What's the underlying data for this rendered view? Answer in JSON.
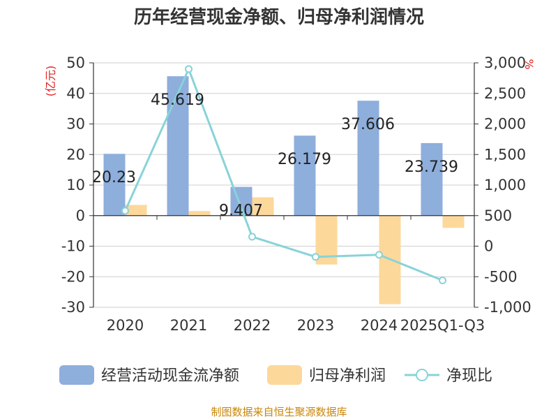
{
  "chart_data": {
    "type": "bar",
    "title": "历年经营现金净额、归母净利润情况",
    "categories": [
      "2020",
      "2021",
      "2022",
      "2023",
      "2024",
      "2025Q1-Q3"
    ],
    "series": [
      {
        "name": "经营活动现金流净额",
        "type": "bar",
        "axis": "left",
        "color": "#8eaedc",
        "values": [
          20.23,
          45.619,
          9.407,
          26.179,
          37.606,
          23.739
        ],
        "labels": [
          "20.23",
          "45.619",
          "9.407",
          "26.179",
          "37.606",
          "23.739"
        ]
      },
      {
        "name": "归母净利润",
        "type": "bar",
        "axis": "left",
        "color": "#fdd89b",
        "values": [
          3.5,
          1.5,
          6.0,
          -16.0,
          -29.0,
          -4.0
        ]
      },
      {
        "name": "净现比",
        "type": "line",
        "axis": "right",
        "color": "#88d3d8",
        "values": [
          578,
          2898,
          154,
          -175,
          -141,
          -560
        ]
      }
    ],
    "y_left": {
      "unit": "(亿元)",
      "min": -30,
      "max": 50,
      "ticks": [
        -30,
        -20,
        -10,
        0,
        10,
        20,
        30,
        40,
        50
      ],
      "tick_labels": [
        "-30",
        "-20",
        "-10",
        "0",
        "10",
        "20",
        "30",
        "40",
        "50"
      ]
    },
    "y_right": {
      "unit": "%",
      "min": -1000,
      "max": 3000,
      "ticks": [
        -1000,
        -500,
        0,
        500,
        1000,
        1500,
        2000,
        2500,
        3000
      ],
      "tick_labels": [
        "-1,000",
        "-500",
        "0",
        "500",
        "1,000",
        "1,500",
        "2,000",
        "2,500",
        "3,000"
      ]
    },
    "grid": true,
    "legend_position": "bottom",
    "source": "制图数据来自恒生聚源数据库"
  }
}
